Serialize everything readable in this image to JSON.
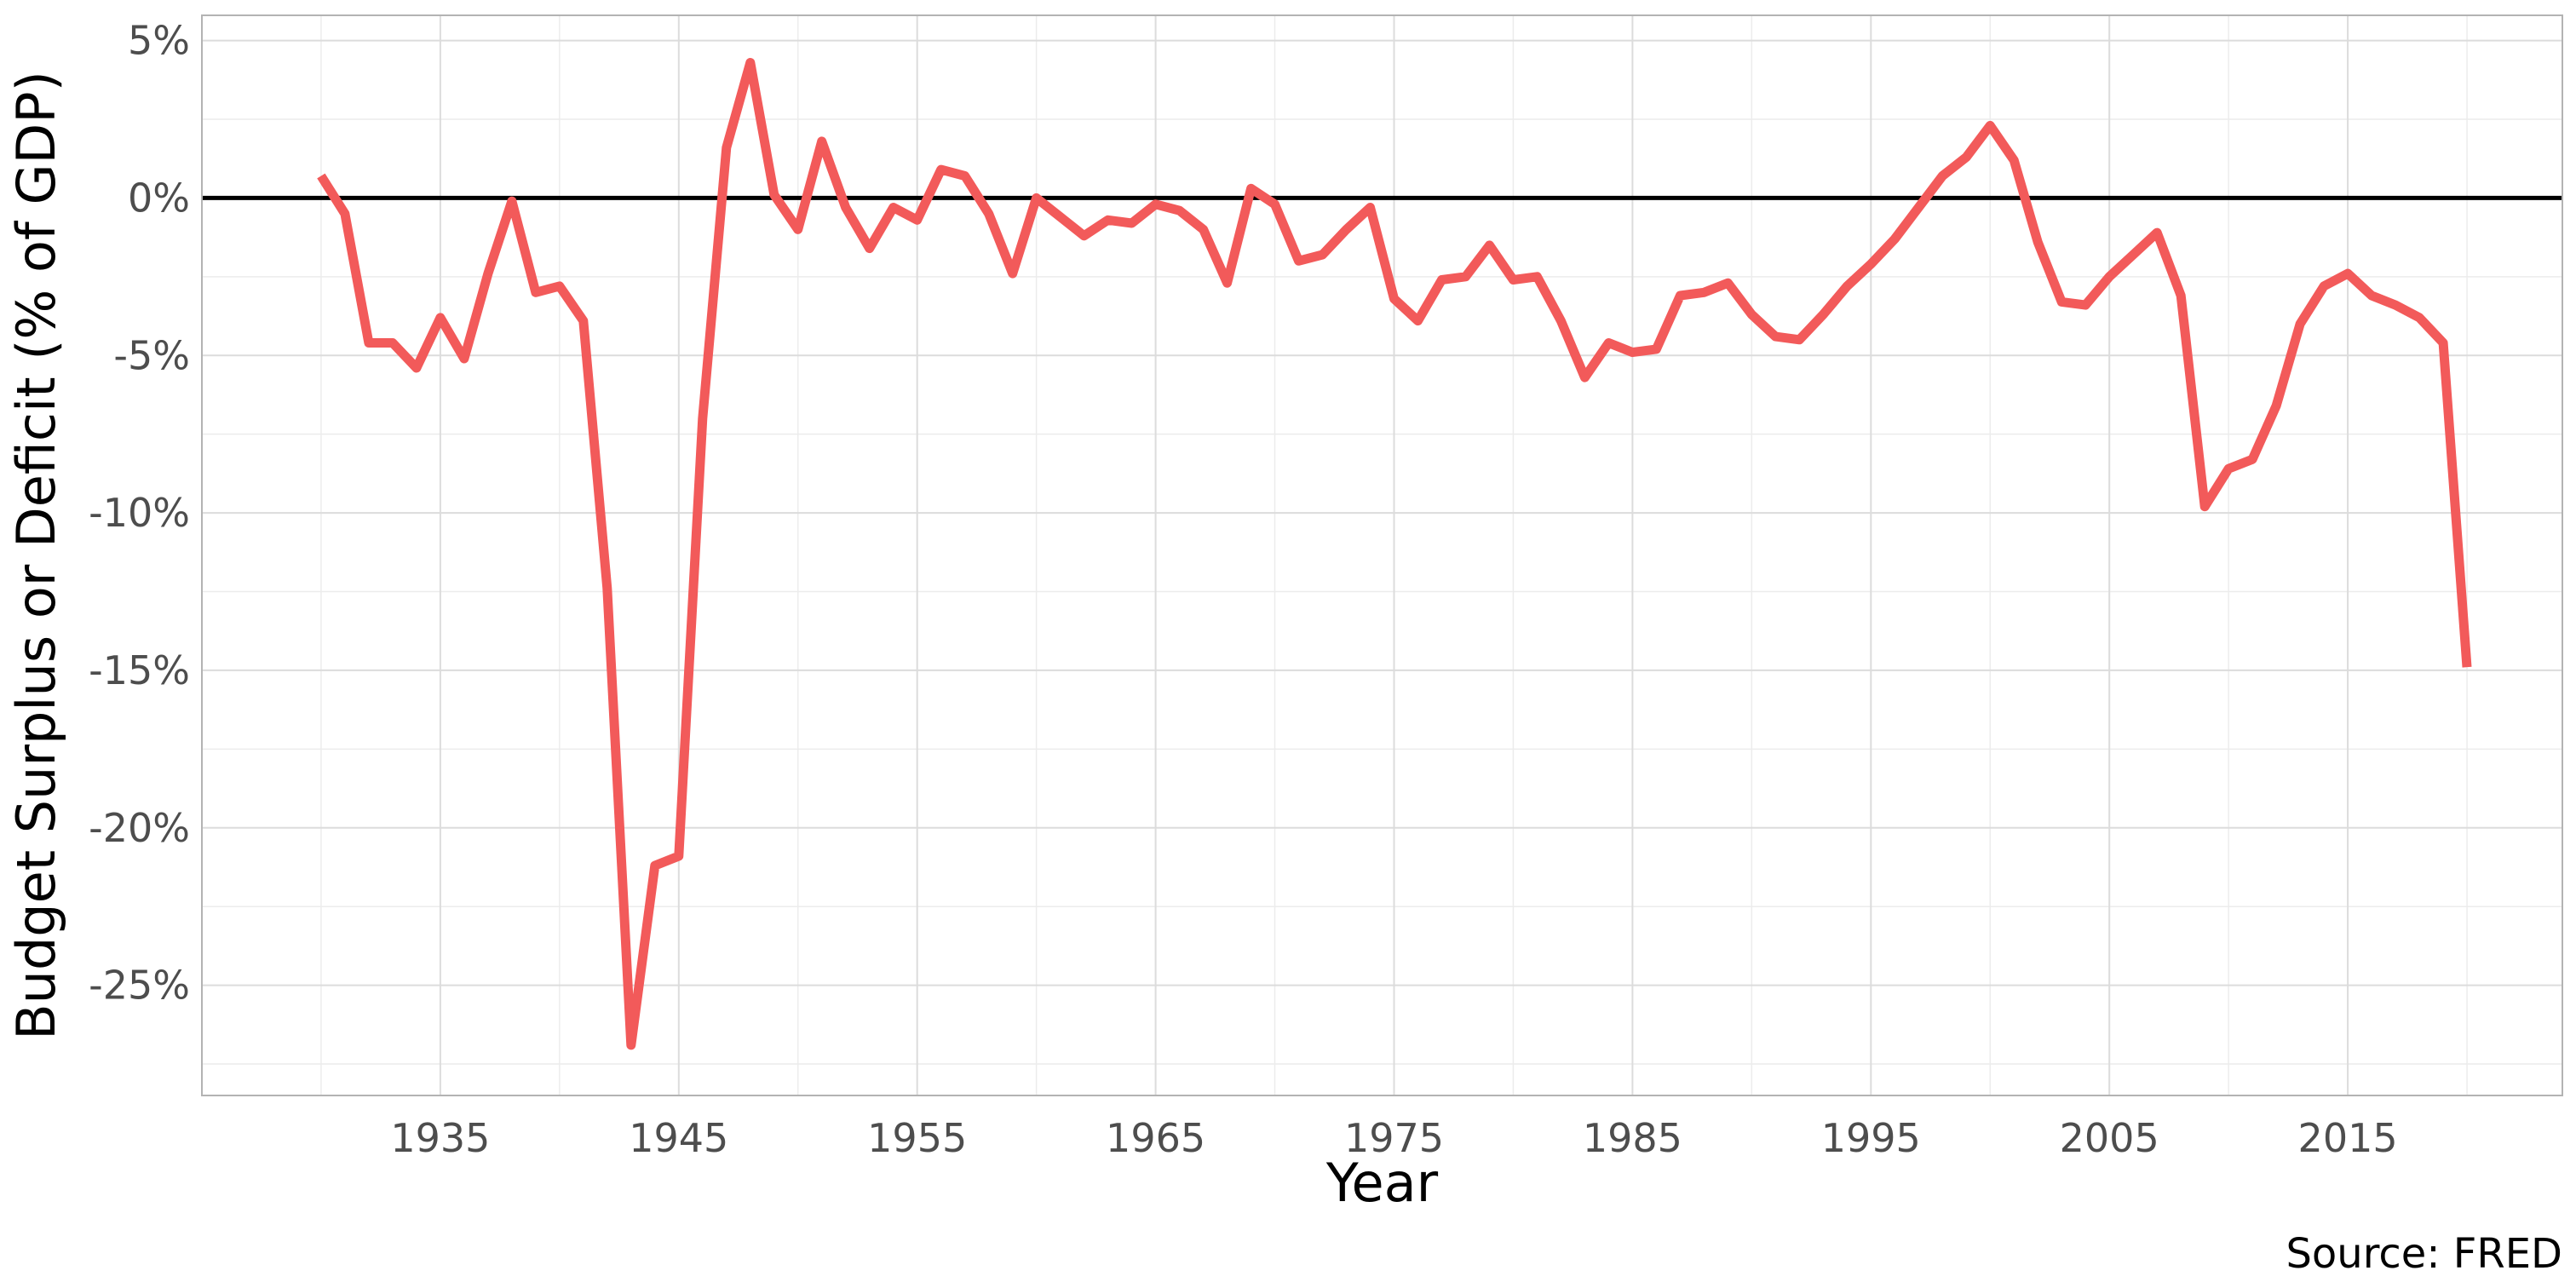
{
  "chart_data": {
    "type": "line",
    "title": "",
    "xlabel": "Year",
    "ylabel": "Budget Surplus or Deficit (% of GDP)",
    "caption": "Source: FRED",
    "xlim": [
      1925,
      2024
    ],
    "ylim": [
      -28.5,
      5.8
    ],
    "x_ticks": [
      1935,
      1945,
      1955,
      1965,
      1975,
      1985,
      1995,
      2005,
      2015
    ],
    "x_tick_labels": [
      "1935",
      "1945",
      "1955",
      "1965",
      "1975",
      "1985",
      "1995",
      "2005",
      "2015"
    ],
    "y_ticks": [
      5,
      0,
      -5,
      -10,
      -15,
      -20,
      -25
    ],
    "y_tick_labels": [
      "5%",
      "0%",
      "-5%",
      "-10%",
      "-15%",
      "-20%",
      "-25%"
    ],
    "grid": true,
    "reference_line_y": 0,
    "series": [
      {
        "color": "#f25a5a",
        "x": [
          1930,
          1931,
          1932,
          1933,
          1934,
          1935,
          1936,
          1937,
          1938,
          1939,
          1940,
          1941,
          1942,
          1943,
          1944,
          1945,
          1946,
          1947,
          1948,
          1949,
          1950,
          1951,
          1952,
          1953,
          1954,
          1955,
          1956,
          1957,
          1958,
          1959,
          1960,
          1961,
          1962,
          1963,
          1964,
          1965,
          1966,
          1967,
          1968,
          1969,
          1970,
          1971,
          1972,
          1973,
          1974,
          1975,
          1976,
          1977,
          1978,
          1979,
          1980,
          1981,
          1982,
          1983,
          1984,
          1985,
          1986,
          1987,
          1988,
          1989,
          1990,
          1991,
          1992,
          1993,
          1994,
          1995,
          1996,
          1997,
          1998,
          1999,
          2000,
          2001,
          2002,
          2003,
          2004,
          2005,
          2006,
          2007,
          2008,
          2009,
          2010,
          2011,
          2012,
          2013,
          2014,
          2015,
          2016,
          2017,
          2018,
          2019,
          2020
        ],
        "values": [
          0.7,
          -0.5,
          -4.6,
          -4.6,
          -5.4,
          -3.8,
          -5.1,
          -2.4,
          -0.1,
          -3.0,
          -2.8,
          -3.9,
          -12.4,
          -26.9,
          -21.2,
          -20.9,
          -7.0,
          1.6,
          4.3,
          0.1,
          -1.0,
          1.8,
          -0.3,
          -1.6,
          -0.3,
          -0.7,
          0.9,
          0.7,
          -0.5,
          -2.4,
          0.0,
          -0.6,
          -1.2,
          -0.7,
          -0.8,
          -0.2,
          -0.4,
          -1.0,
          -2.7,
          0.3,
          -0.2,
          -2.0,
          -1.8,
          -1.0,
          -0.3,
          -3.2,
          -3.9,
          -2.6,
          -2.5,
          -1.5,
          -2.6,
          -2.5,
          -3.9,
          -5.7,
          -4.6,
          -4.9,
          -4.8,
          -3.1,
          -3.0,
          -2.7,
          -3.7,
          -4.4,
          -4.5,
          -3.7,
          -2.8,
          -2.1,
          -1.3,
          -0.3,
          0.7,
          1.3,
          2.3,
          1.2,
          -1.4,
          -3.3,
          -3.4,
          -2.5,
          -1.8,
          -1.1,
          -3.1,
          -9.8,
          -8.6,
          -8.3,
          -6.6,
          -4.0,
          -2.8,
          -2.4,
          -3.1,
          -3.4,
          -3.8,
          -4.6,
          -14.9
        ]
      }
    ]
  }
}
